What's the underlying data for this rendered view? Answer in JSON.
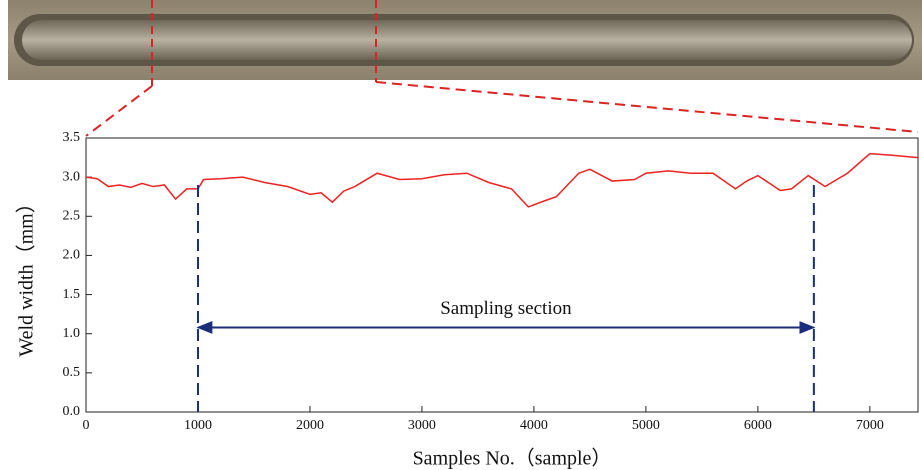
{
  "chart_data": {
    "type": "line",
    "x_label": "Samples No.（sample）",
    "y_label": "Weld width（mm）",
    "x": [
      0,
      100,
      200,
      300,
      400,
      500,
      600,
      700,
      800,
      900,
      1000,
      1050,
      1200,
      1400,
      1600,
      1800,
      2000,
      2100,
      2200,
      2300,
      2400,
      2600,
      2800,
      3000,
      3200,
      3400,
      3600,
      3800,
      3950,
      4100,
      4200,
      4400,
      4500,
      4700,
      4900,
      5000,
      5200,
      5400,
      5600,
      5800,
      5900,
      6000,
      6200,
      6300,
      6450,
      6600,
      6800,
      7000,
      7200,
      7430
    ],
    "series": [
      {
        "color": "#ee2222",
        "values": [
          3.0,
          2.98,
          2.88,
          2.9,
          2.87,
          2.92,
          2.88,
          2.9,
          2.72,
          2.85,
          2.85,
          2.97,
          2.98,
          3.0,
          2.93,
          2.88,
          2.78,
          2.8,
          2.68,
          2.82,
          2.88,
          3.05,
          2.97,
          2.98,
          3.03,
          3.05,
          2.93,
          2.85,
          2.62,
          2.7,
          2.75,
          3.05,
          3.1,
          2.95,
          2.97,
          3.05,
          3.08,
          3.05,
          3.05,
          2.85,
          2.95,
          3.02,
          2.83,
          2.85,
          3.02,
          2.88,
          3.05,
          3.3,
          3.28,
          3.25
        ]
      }
    ],
    "xlim": [
      0,
      7430
    ],
    "ylim": [
      0,
      3.5
    ],
    "xticks": [
      0,
      1000,
      2000,
      3000,
      4000,
      5000,
      6000,
      7000
    ],
    "yticks": [
      {
        "value": 0,
        "label": "0.0"
      },
      0.5,
      {
        "value": 1,
        "label": "1.0"
      },
      1.5,
      {
        "value": 2,
        "label": "2.0"
      },
      2.5,
      {
        "value": 3,
        "label": "3.0"
      },
      3.5
    ],
    "annotation": {
      "text": "Sampling section",
      "x": [
        1000,
        6500
      ],
      "y": 1.08,
      "color": "#1a2e7a"
    }
  }
}
